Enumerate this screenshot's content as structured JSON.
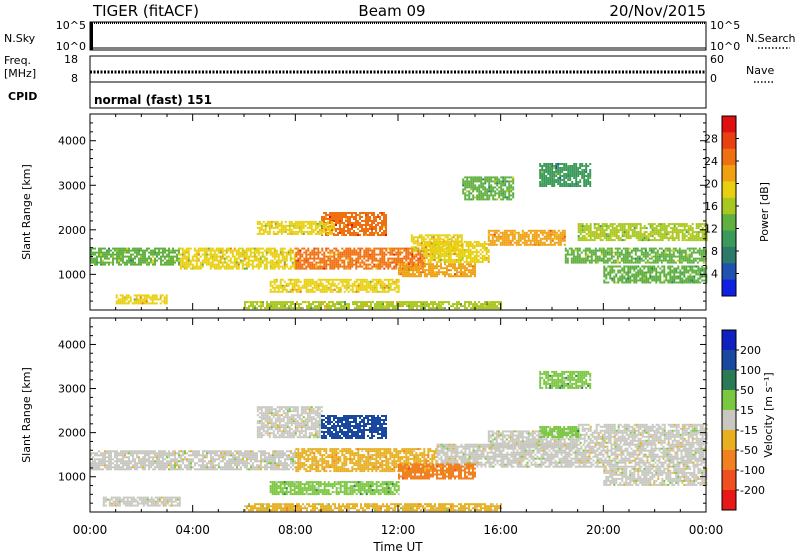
{
  "header": {
    "station": "TIGER (fitACF)",
    "beam": "Beam 09",
    "date": "20/Nov/2015"
  },
  "strips": {
    "nsky": {
      "label": "N.Sky",
      "ticks": [
        "10^5",
        "10^0"
      ]
    },
    "nsearch": {
      "label": "N.Search",
      "ticks": [
        "10^5",
        "10^0"
      ]
    },
    "freq": {
      "label_line1": "Freq.",
      "label_line2": "[MHz]",
      "ticks": [
        "18",
        "8"
      ]
    },
    "nave": {
      "label": "Nave",
      "ticks": [
        "60",
        "0"
      ]
    },
    "cpid": {
      "label": "CPID",
      "value": "normal (fast) 151"
    }
  },
  "chart_data": [
    {
      "type": "heatmap",
      "name": "power",
      "xlabel": "",
      "ylabel": "Slant Range [km]",
      "xlim": [
        0,
        24
      ],
      "ylim": [
        200,
        4600
      ],
      "yticks": [
        1000,
        2000,
        3000,
        4000
      ],
      "colorbar": {
        "label": "Power [dB]",
        "ticks": [
          4,
          8,
          12,
          16,
          20,
          24,
          28
        ],
        "range": [
          0,
          32
        ],
        "colors": [
          "#1020e0",
          "#2050b0",
          "#2e7a6a",
          "#3a9a5a",
          "#60b040",
          "#a8c820",
          "#e8d010",
          "#f0a010",
          "#f07010",
          "#e84010",
          "#e01010"
        ]
      },
      "regions": [
        {
          "x": [
            0.0,
            3.5
          ],
          "y": [
            1200,
            1600
          ],
          "value": 14
        },
        {
          "x": [
            3.5,
            8.0
          ],
          "y": [
            1150,
            1600
          ],
          "value": 18
        },
        {
          "x": [
            8.0,
            13.0
          ],
          "y": [
            1150,
            1600
          ],
          "value": 24
        },
        {
          "x": [
            13.0,
            15.5
          ],
          "y": [
            1300,
            1750
          ],
          "value": 20
        },
        {
          "x": [
            15.5,
            18.5
          ],
          "y": [
            1650,
            2000
          ],
          "value": 22
        },
        {
          "x": [
            18.5,
            24.0
          ],
          "y": [
            1250,
            1600
          ],
          "value": 14
        },
        {
          "x": [
            19.0,
            24.0
          ],
          "y": [
            1750,
            2150
          ],
          "value": 16
        },
        {
          "x": [
            9.0,
            11.5
          ],
          "y": [
            1900,
            2400
          ],
          "value": 26
        },
        {
          "x": [
            6.5,
            9.5
          ],
          "y": [
            1900,
            2200
          ],
          "value": 18
        },
        {
          "x": [
            12.5,
            14.5
          ],
          "y": [
            1500,
            1900
          ],
          "value": 20
        },
        {
          "x": [
            7.0,
            12.0
          ],
          "y": [
            600,
            900
          ],
          "value": 20
        },
        {
          "x": [
            12.0,
            15.0
          ],
          "y": [
            950,
            1250
          ],
          "value": 22
        },
        {
          "x": [
            20.0,
            24.0
          ],
          "y": [
            800,
            1200
          ],
          "value": 12
        },
        {
          "x": [
            1.0,
            3.0
          ],
          "y": [
            350,
            550
          ],
          "value": 20
        },
        {
          "x": [
            17.5,
            19.5
          ],
          "y": [
            3000,
            3500
          ],
          "value": 10
        },
        {
          "x": [
            14.5,
            16.5
          ],
          "y": [
            2700,
            3200
          ],
          "value": 12
        },
        {
          "x": [
            6.0,
            16.0
          ],
          "y": [
            250,
            400
          ],
          "value": 16
        }
      ]
    },
    {
      "type": "heatmap",
      "name": "velocity",
      "xlabel": "Time UT",
      "ylabel": "Slant Range [km]",
      "xlim": [
        0,
        24
      ],
      "ylim": [
        200,
        4600
      ],
      "yticks": [
        1000,
        2000,
        3000,
        4000
      ],
      "xticks": [
        "00:00",
        "04:00",
        "08:00",
        "12:00",
        "16:00",
        "20:00",
        "00:00"
      ],
      "colorbar": {
        "label": "Velocity [m s⁻¹]",
        "ticks": [
          200,
          100,
          50,
          15,
          -15,
          -50,
          -100,
          -200
        ],
        "colors": [
          "#1020c0",
          "#1848a0",
          "#2a7a55",
          "#7ac840",
          "#c8c8c0",
          "#e8b020",
          "#f08020",
          "#f05020",
          "#e81818"
        ]
      },
      "regions": [
        {
          "x": [
            0.0,
            8.0
          ],
          "y": [
            1150,
            1600
          ],
          "value": 0
        },
        {
          "x": [
            8.0,
            13.5
          ],
          "y": [
            1150,
            1650
          ],
          "value": -30
        },
        {
          "x": [
            13.5,
            24.0
          ],
          "y": [
            1250,
            1750
          ],
          "value": 0
        },
        {
          "x": [
            15.5,
            19.0
          ],
          "y": [
            1650,
            2050
          ],
          "value": 0
        },
        {
          "x": [
            19.0,
            24.0
          ],
          "y": [
            1750,
            2200
          ],
          "value": 0
        },
        {
          "x": [
            6.5,
            9.0
          ],
          "y": [
            1900,
            2600
          ],
          "value": 0
        },
        {
          "x": [
            9.0,
            11.5
          ],
          "y": [
            1900,
            2400
          ],
          "value": 150
        },
        {
          "x": [
            12.0,
            15.0
          ],
          "y": [
            950,
            1300
          ],
          "value": -70
        },
        {
          "x": [
            7.0,
            12.0
          ],
          "y": [
            600,
            900
          ],
          "value": 30
        },
        {
          "x": [
            17.5,
            19.0
          ],
          "y": [
            1900,
            2150
          ],
          "value": 30
        },
        {
          "x": [
            20.0,
            24.0
          ],
          "y": [
            800,
            1200
          ],
          "value": 0
        },
        {
          "x": [
            17.5,
            19.5
          ],
          "y": [
            3000,
            3400
          ],
          "value": 30
        },
        {
          "x": [
            0.5,
            3.5
          ],
          "y": [
            350,
            550
          ],
          "value": 0
        },
        {
          "x": [
            6.0,
            16.0
          ],
          "y": [
            250,
            400
          ],
          "value": -20
        }
      ]
    }
  ]
}
